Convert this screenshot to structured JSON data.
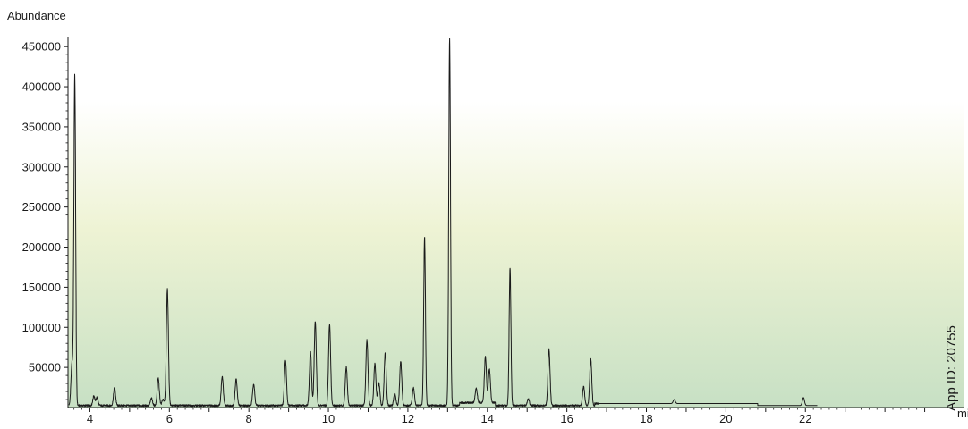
{
  "chart_data": {
    "type": "line",
    "title": "",
    "ylabel": "Abundance",
    "xlabel": "min",
    "xlim": [
      3.45,
      26.0
    ],
    "ylim": [
      0,
      458000
    ],
    "x_ticks": [
      4,
      6,
      8,
      10,
      12,
      14,
      16,
      18,
      20,
      22
    ],
    "y_ticks": [
      50000,
      100000,
      150000,
      200000,
      250000,
      300000,
      350000,
      400000,
      450000
    ],
    "grid": false,
    "background": [
      "#ffffff",
      "#eef3d4",
      "#c7e0c4"
    ],
    "line_color": "#1a1a1a",
    "baseline": 2500,
    "peaks": [
      {
        "rt": 3.55,
        "height": 52000
      },
      {
        "rt": 3.62,
        "height": 412000
      },
      {
        "rt": 4.1,
        "height": 12000
      },
      {
        "rt": 4.18,
        "height": 10000
      },
      {
        "rt": 4.62,
        "height": 22000
      },
      {
        "rt": 5.55,
        "height": 9000
      },
      {
        "rt": 5.72,
        "height": 34000
      },
      {
        "rt": 5.84,
        "height": 8000
      },
      {
        "rt": 5.95,
        "height": 145000
      },
      {
        "rt": 7.33,
        "height": 36000
      },
      {
        "rt": 7.68,
        "height": 33000
      },
      {
        "rt": 8.12,
        "height": 27000
      },
      {
        "rt": 8.92,
        "height": 56000
      },
      {
        "rt": 9.55,
        "height": 67000
      },
      {
        "rt": 9.67,
        "height": 105000
      },
      {
        "rt": 10.03,
        "height": 101000
      },
      {
        "rt": 10.45,
        "height": 48000
      },
      {
        "rt": 10.97,
        "height": 82000
      },
      {
        "rt": 11.17,
        "height": 52000
      },
      {
        "rt": 11.27,
        "height": 28000
      },
      {
        "rt": 11.43,
        "height": 66000
      },
      {
        "rt": 11.67,
        "height": 15000
      },
      {
        "rt": 11.82,
        "height": 55000
      },
      {
        "rt": 12.14,
        "height": 22000
      },
      {
        "rt": 12.42,
        "height": 210000
      },
      {
        "rt": 13.05,
        "height": 458000
      },
      {
        "rt": 13.72,
        "height": 18000
      },
      {
        "rt": 13.95,
        "height": 57000
      },
      {
        "rt": 14.05,
        "height": 42000
      },
      {
        "rt": 14.57,
        "height": 172000
      },
      {
        "rt": 15.03,
        "height": 8000
      },
      {
        "rt": 15.55,
        "height": 70000
      },
      {
        "rt": 16.42,
        "height": 24000
      },
      {
        "rt": 16.6,
        "height": 58000
      },
      {
        "rt": 18.7,
        "height": 5000
      },
      {
        "rt": 21.95,
        "height": 10000
      }
    ]
  },
  "annotation": {
    "app_id": "App ID: 20755"
  }
}
